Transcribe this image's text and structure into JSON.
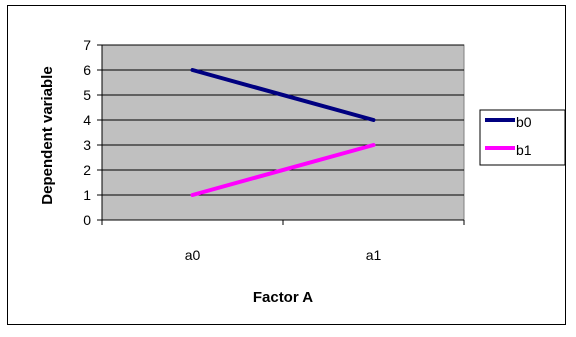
{
  "chart_data": {
    "type": "line",
    "title": "",
    "xlabel": "Factor A",
    "ylabel": "Dependent variable",
    "categories": [
      "a0",
      "a1"
    ],
    "ylim": [
      0,
      7
    ],
    "yticks": [
      0,
      1,
      2,
      3,
      4,
      5,
      6,
      7
    ],
    "grid": true,
    "legend": "right",
    "plot_background": "#c0c0c0",
    "series": [
      {
        "name": "b0",
        "values": [
          6,
          4
        ],
        "color": "#000080"
      },
      {
        "name": "b1",
        "values": [
          1,
          3
        ],
        "color": "#ff00ff"
      }
    ]
  }
}
